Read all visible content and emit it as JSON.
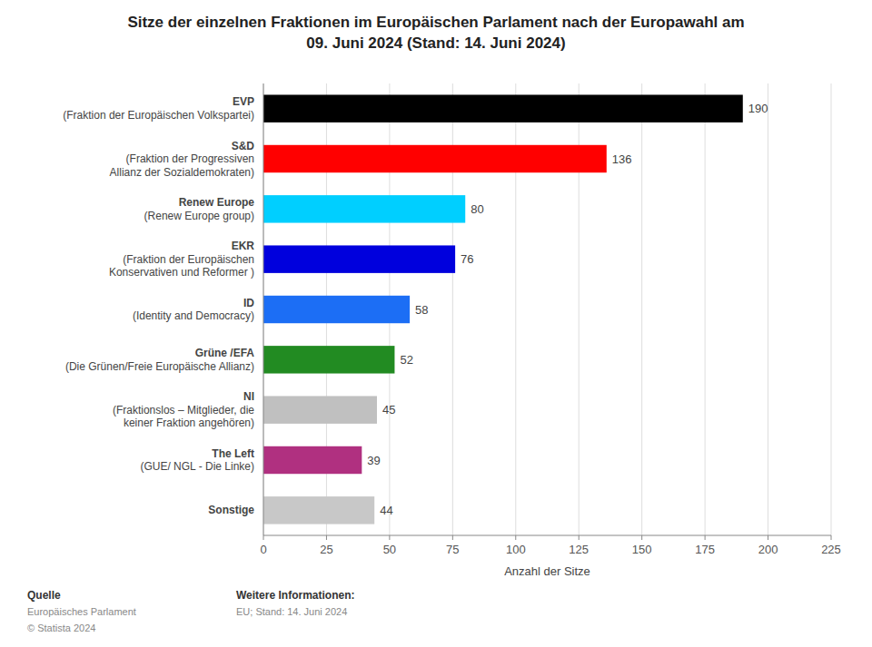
{
  "chart_data": {
    "type": "bar",
    "orientation": "horizontal",
    "title": "Sitze der einzelnen Fraktionen im Europäischen Parlament nach der Europawahl am\n09. Juni 2024 (Stand: 14. Juni 2024)",
    "categories": [
      "EVP\n(Fraktion der Europäischen Volkspartei)",
      "S&D\n(Fraktion der Progressiven\nAllianz der Sozialdemokraten)",
      "Renew Europe\n(Renew Europe group)",
      "EKR\n(Fraktion der Europäischen\nKonservativen und Reformer )",
      "ID\n(Identity and Democracy)",
      "Grüne /EFA\n(Die Grünen/Freie Europäische Allianz)",
      "NI\n(Fraktionslos – Mitglieder, die\nkeiner Fraktion angehören)",
      "The Left\n(GUE/ NGL - Die Linke)",
      "Sonstige"
    ],
    "values": [
      190,
      136,
      80,
      76,
      58,
      52,
      45,
      39,
      44
    ],
    "colors": [
      "#000000",
      "#ff0000",
      "#00cfff",
      "#0000dd",
      "#1c6ef5",
      "#228b22",
      "#c0c0c0",
      "#b03080",
      "#c8c8c8"
    ],
    "xlabel": "Anzahl der Sitze",
    "xlim": [
      0,
      225
    ],
    "xticks": [
      0,
      25,
      50,
      75,
      100,
      125,
      150,
      175,
      200,
      225
    ],
    "grid": true,
    "data_labels": true,
    "annotations": [
      [
        "Quelle",
        "Europäisches Parlament",
        "© Statista 2024"
      ],
      [
        "Weitere Informationen:",
        "EU; Stand: 14. Juni 2024"
      ]
    ]
  }
}
